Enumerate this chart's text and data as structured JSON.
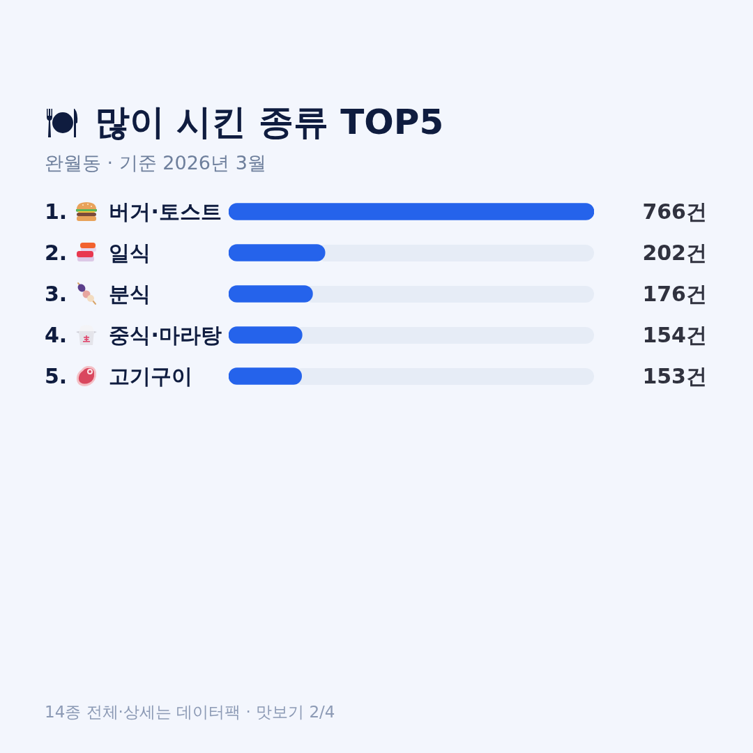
{
  "chart_data": {
    "type": "bar",
    "orientation": "horizontal",
    "title": "많이 시킨 종류 TOP5",
    "subtitle": "완월동 · 기준 2026년 3월",
    "categories": [
      "1. 버거·토스트",
      "2. 일식",
      "3. 분식",
      "4. 중식·마라탕",
      "5. 고기구이"
    ],
    "values": [
      766,
      202,
      176,
      154,
      153
    ],
    "color": "#2563eb",
    "value_labels": [
      "766건",
      "202건",
      "176건",
      "154건",
      "153건"
    ],
    "xlim": [
      0,
      766
    ],
    "tick_labels": "y",
    "annotations": [
      "14종 전체·상세는 데이터팩 · 맛보기 2/4"
    ]
  }
}
